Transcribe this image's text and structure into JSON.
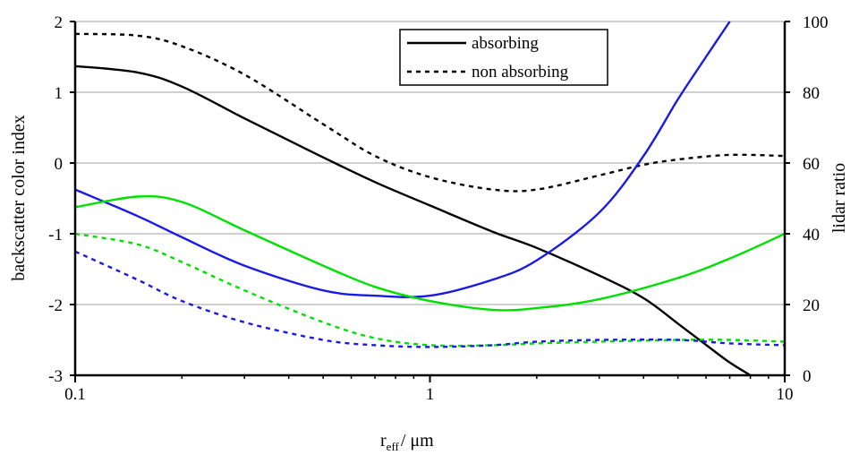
{
  "chart_data": {
    "type": "line",
    "x_scale": "log",
    "xlim": [
      0.1,
      10
    ],
    "xlabel_main": "r",
    "xlabel_sub": "eff",
    "xlabel_unit": "/ μm",
    "x_tick_labels": [
      "0.1",
      "1",
      "10"
    ],
    "y_left": {
      "label": "backscatter color index",
      "range": [
        -3,
        2
      ],
      "ticks": [
        -3,
        -2,
        -1,
        0,
        1,
        2
      ],
      "tick_labels": [
        "-3",
        "-2",
        "-1",
        "0",
        "1",
        "2"
      ]
    },
    "y_right": {
      "label": "lidar ratio",
      "range": [
        0,
        100
      ],
      "ticks": [
        0,
        20,
        40,
        60,
        80,
        100
      ],
      "tick_labels": [
        "0",
        "20",
        "40",
        "60",
        "80",
        "100"
      ]
    },
    "grid": "horizontal",
    "legend": {
      "placement": "top-center",
      "entries": [
        {
          "label": "absorbing",
          "style": "solid"
        },
        {
          "label": "non absorbing",
          "style": "dashed"
        }
      ]
    },
    "series": [
      {
        "key": "black_solid",
        "axis": "left",
        "color": "#000000",
        "dash": "solid",
        "x": [
          0.1,
          0.15,
          0.2,
          0.3,
          0.4,
          0.5,
          0.7,
          1,
          1.5,
          2,
          3,
          4,
          5,
          6,
          7,
          8
        ],
        "y": [
          1.37,
          1.28,
          1.08,
          0.63,
          0.32,
          0.08,
          -0.27,
          -0.6,
          -0.97,
          -1.2,
          -1.59,
          -1.91,
          -2.27,
          -2.57,
          -2.82,
          -3.0
        ]
      },
      {
        "key": "black_dashed",
        "axis": "right",
        "color": "#000000",
        "dash": "dashed",
        "x": [
          0.1,
          0.15,
          0.2,
          0.3,
          0.5,
          0.7,
          1,
          1.5,
          2,
          3,
          4,
          5,
          7,
          10
        ],
        "y": [
          96.5,
          96,
          93,
          85,
          71,
          62,
          56,
          52.5,
          52.5,
          56.5,
          59.5,
          61,
          62.3,
          62
        ]
      },
      {
        "key": "blue_solid",
        "axis": "right",
        "color": "#1a1ae6",
        "dash": "solid",
        "x": [
          0.1,
          0.15,
          0.2,
          0.3,
          0.5,
          0.7,
          1,
          1.5,
          2,
          3,
          4,
          5,
          6,
          7
        ],
        "y": [
          52.5,
          45,
          39,
          31,
          24,
          22.5,
          22.5,
          27,
          32.5,
          46,
          62,
          78,
          90,
          100
        ]
      },
      {
        "key": "green_solid",
        "axis": "right",
        "color": "#00e000",
        "dash": "solid",
        "x": [
          0.1,
          0.15,
          0.2,
          0.3,
          0.5,
          0.7,
          1,
          1.5,
          2,
          3,
          5,
          7,
          10
        ],
        "y": [
          47.5,
          50.5,
          49,
          41,
          31,
          25,
          21,
          18.5,
          19,
          21.5,
          27.5,
          33,
          40
        ]
      },
      {
        "key": "green_dashed",
        "axis": "right",
        "color": "#00e000",
        "dash": "dashed",
        "x": [
          0.1,
          0.15,
          0.2,
          0.3,
          0.5,
          0.7,
          1,
          1.5,
          2,
          3,
          5,
          7,
          10
        ],
        "y": [
          40,
          37,
          32,
          24,
          15,
          10.5,
          8.5,
          8.5,
          9,
          9.5,
          10,
          10,
          9.5
        ]
      },
      {
        "key": "blue_dashed",
        "axis": "right",
        "color": "#1a1ae6",
        "dash": "dashed",
        "x": [
          0.1,
          0.15,
          0.2,
          0.3,
          0.5,
          0.7,
          1,
          1.5,
          2,
          3,
          5,
          7,
          10
        ],
        "y": [
          35,
          27,
          21,
          15,
          10,
          8.5,
          8,
          8.5,
          9.5,
          10,
          10,
          9,
          8.5
        ]
      }
    ]
  }
}
